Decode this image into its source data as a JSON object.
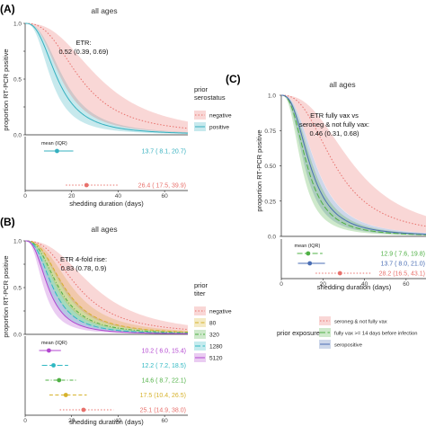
{
  "colors": {
    "grey_bg": "#ebebeb",
    "strip_bg": "#d9d9d9",
    "negative": "#e8716c",
    "negative_fill": "#f7c7c4",
    "positive": "#35b0bf",
    "t80": "#d6b22b",
    "t320": "#4fb044",
    "t1280": "#2fb8c2",
    "t5120": "#b347d0",
    "vax": "#4fb044",
    "sero": "#4a6eb4"
  },
  "chart_data": [
    {
      "type": "line",
      "panel_label": "(A)",
      "strip_title": "all ages",
      "annotation": [
        "ETR:",
        "0.52 (0.39, 0.69)"
      ],
      "ylabel": "proportion RT-PCR positive",
      "xlabel": "shedding duration (days)",
      "xlim": [
        0,
        70
      ],
      "ylim": [
        0,
        1
      ],
      "x_ticks": [
        0,
        20,
        40,
        60
      ],
      "y_ticks": [
        0.0,
        0.25,
        0.5,
        0.75,
        1.0
      ],
      "y_tick_labels": [
        "0.0",
        "",
        "0.5",
        "",
        "1.0"
      ],
      "legend": {
        "title": [
          "prior",
          "serostatus"
        ],
        "entries": [
          "negative",
          "positive"
        ],
        "placement": "right"
      },
      "stats_header": "mean (IQR)",
      "series": [
        {
          "name": "negative",
          "color_key": "negative",
          "style": "dotted",
          "mean": 26.4,
          "q1": 17.5,
          "q3": 39.9,
          "label": "26.4 ( 17.5, 39.9)",
          "median": 24,
          "band": 0.35
        },
        {
          "name": "positive",
          "color_key": "positive",
          "style": "solid",
          "mean": 13.7,
          "q1": 8.1,
          "q3": 20.7,
          "label": "13.7 ( 8.1, 20.7)",
          "median": 14,
          "band": 0.2
        }
      ]
    },
    {
      "type": "line",
      "panel_label": "(B)",
      "strip_title": "all ages",
      "annotation": [
        "ETR 4-fold rise:",
        "0.83 (0.78, 0.9)"
      ],
      "ylabel": "proportion RT-PCR positive",
      "xlabel": "shedding duration (days)",
      "xlim": [
        0,
        70
      ],
      "ylim": [
        0,
        1
      ],
      "x_ticks": [
        0,
        20,
        40,
        60
      ],
      "y_ticks": [
        0.0,
        0.25,
        0.5,
        0.75,
        1.0
      ],
      "y_tick_labels": [
        "0.0",
        "",
        "0.5",
        "",
        "1.0"
      ],
      "legend": {
        "title": [
          "prior",
          "titer"
        ],
        "entries": [
          "negative",
          "80",
          "320",
          "1280",
          "5120"
        ],
        "placement": "right"
      },
      "stats_header": "mean (IQR)",
      "series": [
        {
          "name": "negative",
          "color_key": "negative",
          "style": "dotted",
          "mean": 25.1,
          "q1": 14.9,
          "q3": 38.0,
          "label": "25.1 (14.9, 38.0)",
          "median": 23,
          "band": 0.3
        },
        {
          "name": "80",
          "color_key": "t80",
          "style": "dashed",
          "mean": 17.5,
          "q1": 10.4,
          "q3": 26.5,
          "label": "17.5 (10.4, 26.5)",
          "median": 17,
          "band": 0.2
        },
        {
          "name": "320",
          "color_key": "t320",
          "style": "dashdot",
          "mean": 14.6,
          "q1": 8.7,
          "q3": 22.1,
          "label": "14.6 ( 8.7, 22.1)",
          "median": 14.5,
          "band": 0.18
        },
        {
          "name": "1280",
          "color_key": "t1280",
          "style": "longdash",
          "mean": 12.2,
          "q1": 7.2,
          "q3": 18.5,
          "label": "12.2 ( 7.2, 18.5)",
          "median": 12,
          "band": 0.18
        },
        {
          "name": "5120",
          "color_key": "t5120",
          "style": "solid",
          "mean": 10.2,
          "q1": 6.0,
          "q3": 15.4,
          "label": "10.2 ( 6.0, 15.4)",
          "median": 10,
          "band": 0.2
        }
      ]
    },
    {
      "type": "line",
      "panel_label": "(C)",
      "strip_title": "all ages",
      "annotation": [
        "ETR fully vax vs",
        "seroneg & not fully vax:",
        "0.46 (0.31, 0.68)"
      ],
      "ylabel": "proportion RT-PCR positive",
      "xlabel": "shedding duration (days)",
      "xlim": [
        0,
        70
      ],
      "ylim": [
        0,
        1
      ],
      "x_ticks": [
        0,
        20,
        40,
        60
      ],
      "y_ticks": [
        0.0,
        0.25,
        0.5,
        0.75,
        1.0
      ],
      "y_tick_labels": [
        "0.0",
        "0.25",
        "0.50",
        "0.75",
        "1.0"
      ],
      "legend": {
        "title": [
          "prior exposure"
        ],
        "entries": [
          "seroneg & not fully vax",
          "fully vax >= 14 days before infection",
          "seropositive"
        ],
        "placement": "bottom"
      },
      "stats_header": "mean (IQR)",
      "series": [
        {
          "name": "seroneg & not fully vax",
          "color_key": "negative",
          "style": "dotted",
          "mean": 28.2,
          "q1": 16.5,
          "q3": 43.1,
          "label": "28.2 (16.5, 43.1)",
          "median": 26,
          "band": 0.35
        },
        {
          "name": "fully vax >= 14 days before infection",
          "color_key": "vax",
          "style": "longdash",
          "mean": 12.9,
          "q1": 7.6,
          "q3": 19.8,
          "label": "12.9 ( 7.6, 19.8)",
          "median": 12.5,
          "band": 0.22
        },
        {
          "name": "seropositive",
          "color_key": "sero",
          "style": "solid",
          "mean": 13.7,
          "q1": 8.0,
          "q3": 21.0,
          "label": "13.7 ( 8.0, 21.0)",
          "median": 14,
          "band": 0.2
        }
      ]
    }
  ]
}
